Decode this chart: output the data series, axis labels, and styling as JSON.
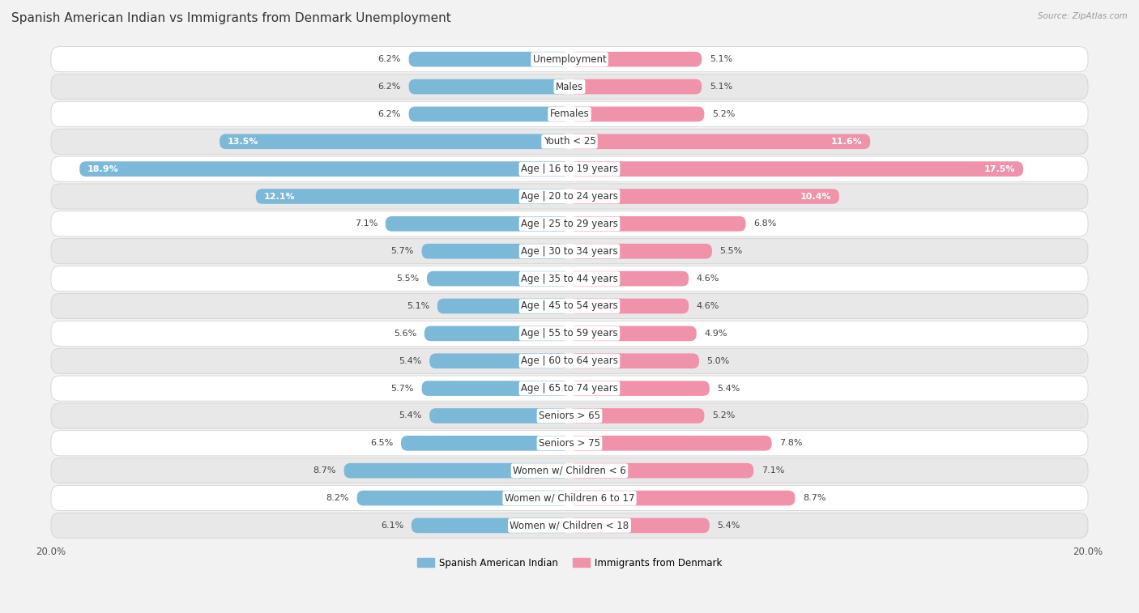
{
  "title": "Spanish American Indian vs Immigrants from Denmark Unemployment",
  "source": "Source: ZipAtlas.com",
  "categories": [
    "Unemployment",
    "Males",
    "Females",
    "Youth < 25",
    "Age | 16 to 19 years",
    "Age | 20 to 24 years",
    "Age | 25 to 29 years",
    "Age | 30 to 34 years",
    "Age | 35 to 44 years",
    "Age | 45 to 54 years",
    "Age | 55 to 59 years",
    "Age | 60 to 64 years",
    "Age | 65 to 74 years",
    "Seniors > 65",
    "Seniors > 75",
    "Women w/ Children < 6",
    "Women w/ Children 6 to 17",
    "Women w/ Children < 18"
  ],
  "left_values": [
    6.2,
    6.2,
    6.2,
    13.5,
    18.9,
    12.1,
    7.1,
    5.7,
    5.5,
    5.1,
    5.6,
    5.4,
    5.7,
    5.4,
    6.5,
    8.7,
    8.2,
    6.1
  ],
  "right_values": [
    5.1,
    5.1,
    5.2,
    11.6,
    17.5,
    10.4,
    6.8,
    5.5,
    4.6,
    4.6,
    4.9,
    5.0,
    5.4,
    5.2,
    7.8,
    7.1,
    8.7,
    5.4
  ],
  "left_color": "#7cb9d8",
  "right_color": "#f092aa",
  "left_label": "Spanish American Indian",
  "right_label": "Immigrants from Denmark",
  "max_val": 20.0,
  "bg_color": "#f2f2f2",
  "row_bg_light": "#ffffff",
  "row_bg_dark": "#e8e8e8",
  "title_fontsize": 11,
  "cat_fontsize": 8.5,
  "val_fontsize": 8.0,
  "inside_threshold": 10.0
}
